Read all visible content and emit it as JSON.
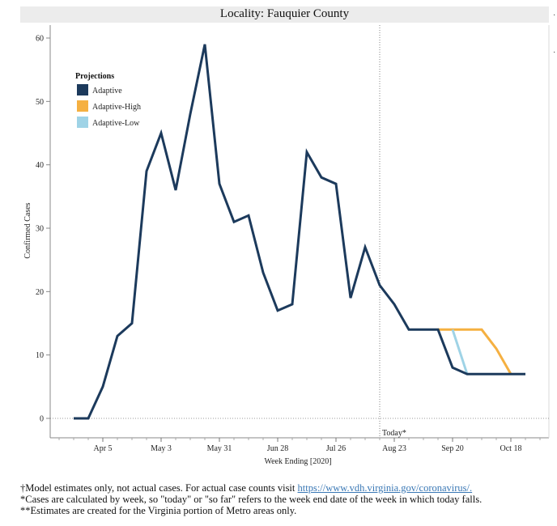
{
  "header": {
    "title": "Locality: Fauquier County"
  },
  "chart_data": {
    "type": "line",
    "title": "Locality: Fauquier County",
    "xlabel": "Week Ending [2020]",
    "ylabel": "Confirmed Cases",
    "ylim": [
      0,
      62
    ],
    "yticks": [
      0,
      10,
      20,
      30,
      40,
      50,
      60
    ],
    "xticks": [
      "Apr 5",
      "May 3",
      "May 31",
      "Jun 28",
      "Jul 26",
      "Aug 23",
      "Sep 20",
      "Oct 18"
    ],
    "today_marker": {
      "label": "Today*",
      "date": "2020-08-16"
    },
    "legend": {
      "title": "Projections",
      "placement": "top-left"
    },
    "series": [
      {
        "name": "Adaptive",
        "color": "#1c3a5c",
        "points": [
          [
            "2020-03-22",
            0
          ],
          [
            "2020-03-29",
            0
          ],
          [
            "2020-04-05",
            5
          ],
          [
            "2020-04-12",
            13
          ],
          [
            "2020-04-19",
            15
          ],
          [
            "2020-04-26",
            39
          ],
          [
            "2020-05-03",
            45
          ],
          [
            "2020-05-10",
            36
          ],
          [
            "2020-05-17",
            48
          ],
          [
            "2020-05-24",
            59
          ],
          [
            "2020-05-31",
            37
          ],
          [
            "2020-06-07",
            31
          ],
          [
            "2020-06-14",
            32
          ],
          [
            "2020-06-21",
            23
          ],
          [
            "2020-06-28",
            17
          ],
          [
            "2020-07-05",
            18
          ],
          [
            "2020-07-12",
            42
          ],
          [
            "2020-07-19",
            38
          ],
          [
            "2020-07-26",
            37
          ],
          [
            "2020-08-02",
            19
          ],
          [
            "2020-08-09",
            27
          ],
          [
            "2020-08-16",
            21
          ],
          [
            "2020-08-23",
            18
          ],
          [
            "2020-08-30",
            14
          ],
          [
            "2020-09-06",
            14
          ],
          [
            "2020-09-13",
            14
          ],
          [
            "2020-09-20",
            8
          ],
          [
            "2020-09-27",
            7
          ],
          [
            "2020-10-04",
            7
          ],
          [
            "2020-10-11",
            7
          ],
          [
            "2020-10-18",
            7
          ],
          [
            "2020-10-25",
            7
          ]
        ]
      },
      {
        "name": "Adaptive-High",
        "color": "#f5b041",
        "points": [
          [
            "2020-09-13",
            14
          ],
          [
            "2020-09-20",
            14
          ],
          [
            "2020-09-27",
            14
          ],
          [
            "2020-10-04",
            14
          ],
          [
            "2020-10-11",
            11
          ],
          [
            "2020-10-18",
            7
          ]
        ]
      },
      {
        "name": "Adaptive-Low",
        "color": "#9fd3e6",
        "points": [
          [
            "2020-09-20",
            14
          ],
          [
            "2020-09-27",
            7
          ]
        ]
      }
    ]
  },
  "footnotes": {
    "line1_text": "†Model estimates only, not actual cases. For actual case counts visit ",
    "line1_link": "https://www.vdh.virginia.gov/coronavirus/.",
    "line2": "*Cases are calculated by week, so \"today\" or \"so far\" refers to the week end date of the week in which today falls.",
    "line3": "**Estimates are created for the Virginia portion of Metro areas only."
  }
}
